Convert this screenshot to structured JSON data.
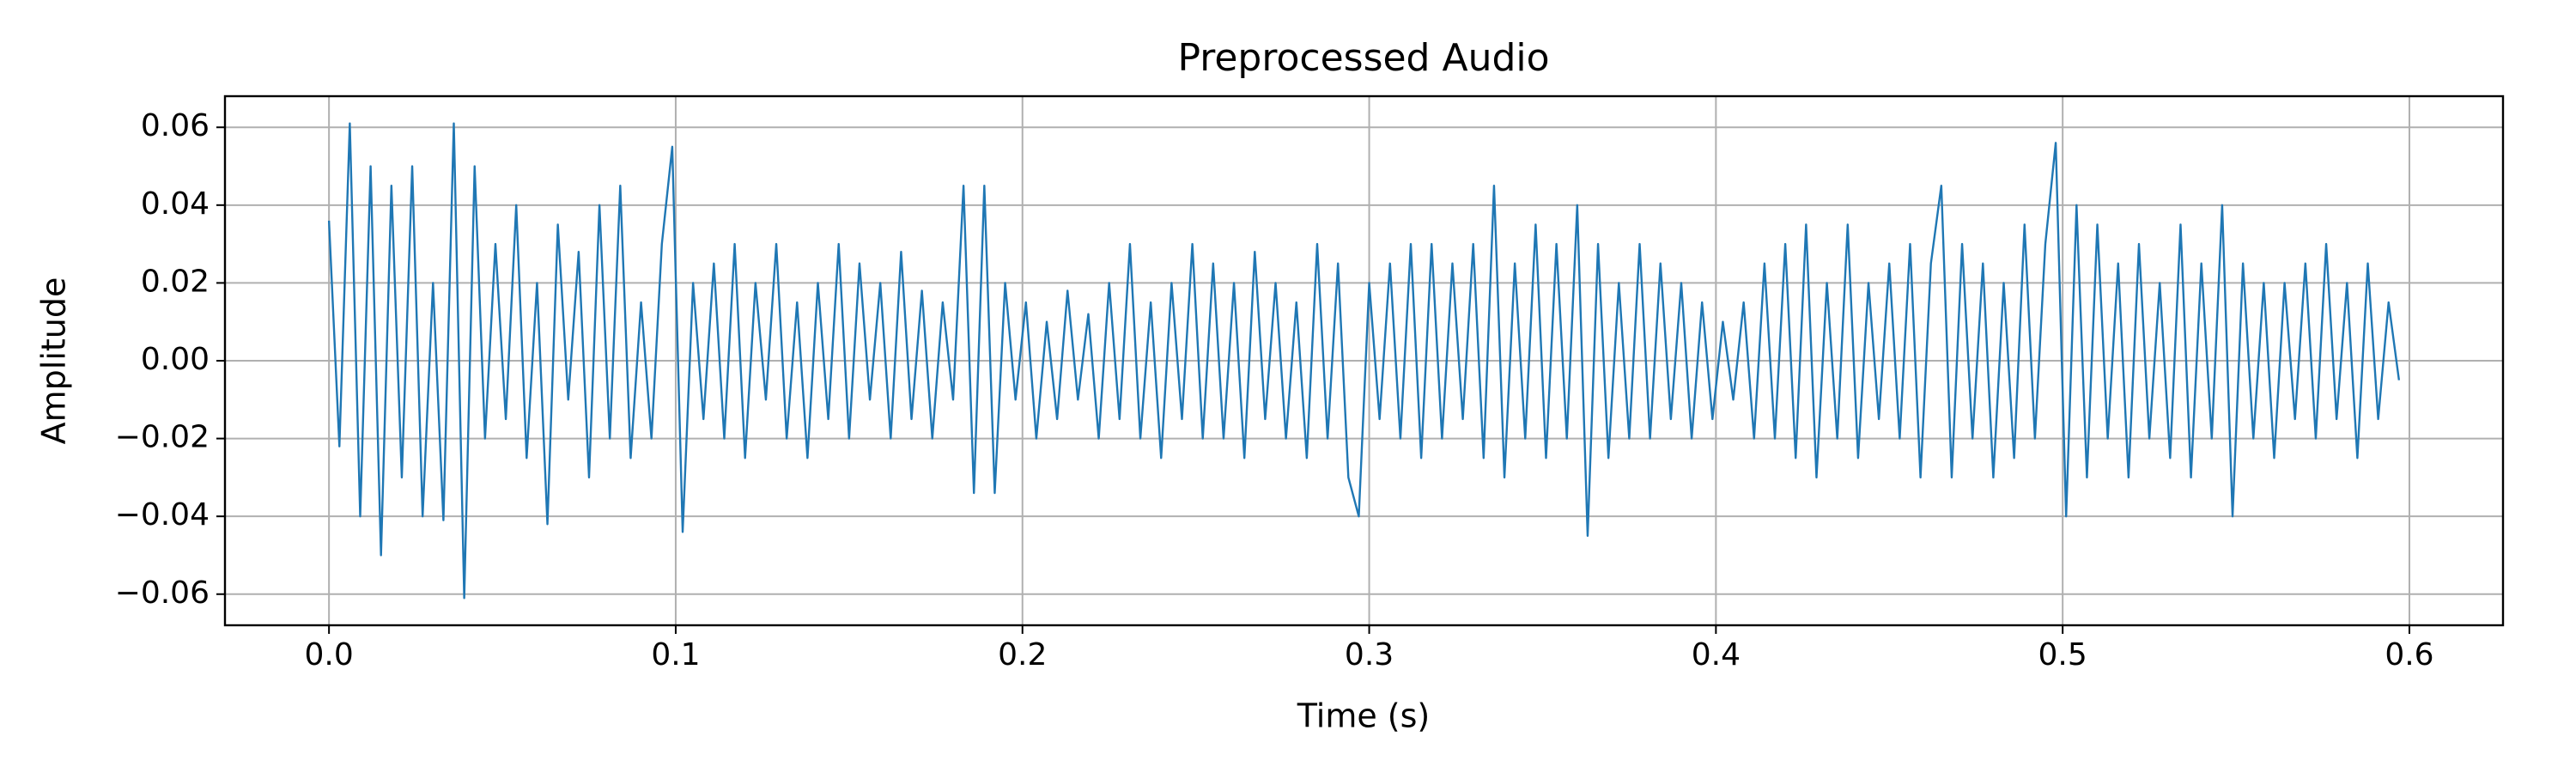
{
  "chart_data": {
    "type": "line",
    "title": "Preprocessed Audio",
    "xlabel": "Time (s)",
    "ylabel": "Amplitude",
    "color": "#1f77b4",
    "grid": true,
    "xlim": [
      -0.03,
      0.627
    ],
    "ylim": [
      -0.068,
      0.068
    ],
    "xticks": [
      {
        "value": 0,
        "label": "0.0"
      },
      0.1,
      0.2,
      0.3,
      0.4,
      0.5,
      0.6
    ],
    "yticks": [
      {
        "value": -0.06,
        "label": "−0.06"
      },
      {
        "value": -0.04,
        "label": "−0.04"
      },
      {
        "value": -0.02,
        "label": "−0.02"
      },
      {
        "value": 0,
        "label": "0.00"
      },
      {
        "value": 0.02,
        "label": "0.02"
      },
      {
        "value": 0.04,
        "label": "0.04"
      },
      {
        "value": 0.06,
        "label": "0.06"
      }
    ],
    "x": [
      0,
      0.003,
      0.006,
      0.009,
      0.012,
      0.015,
      0.018,
      0.021,
      0.024,
      0.027,
      0.03,
      0.033,
      0.036,
      0.039,
      0.042,
      0.045,
      0.048,
      0.051,
      0.054,
      0.057,
      0.06,
      0.063,
      0.066,
      0.069,
      0.072,
      0.075,
      0.078,
      0.081,
      0.084,
      0.087,
      0.09,
      0.093,
      0.096,
      0.099,
      0.102,
      0.105,
      0.108,
      0.111,
      0.114,
      0.117,
      0.12,
      0.123,
      0.126,
      0.129,
      0.132,
      0.135,
      0.138,
      0.141,
      0.144,
      0.147,
      0.15,
      0.153,
      0.156,
      0.159,
      0.162,
      0.165,
      0.168,
      0.171,
      0.174,
      0.177,
      0.18,
      0.183,
      0.186,
      0.189,
      0.192,
      0.195,
      0.198,
      0.201,
      0.204,
      0.207,
      0.21,
      0.213,
      0.216,
      0.219,
      0.222,
      0.225,
      0.228,
      0.231,
      0.234,
      0.237,
      0.24,
      0.243,
      0.246,
      0.249,
      0.252,
      0.255,
      0.258,
      0.261,
      0.264,
      0.267,
      0.27,
      0.273,
      0.276,
      0.279,
      0.282,
      0.285,
      0.288,
      0.291,
      0.294,
      0.297,
      0.3,
      0.303,
      0.306,
      0.309,
      0.312,
      0.315,
      0.318,
      0.321,
      0.324,
      0.327,
      0.33,
      0.333,
      0.336,
      0.339,
      0.342,
      0.345,
      0.348,
      0.351,
      0.354,
      0.357,
      0.36,
      0.363,
      0.366,
      0.369,
      0.372,
      0.375,
      0.378,
      0.381,
      0.384,
      0.387,
      0.39,
      0.393,
      0.396,
      0.399,
      0.402,
      0.405,
      0.408,
      0.411,
      0.414,
      0.417,
      0.42,
      0.423,
      0.426,
      0.429,
      0.432,
      0.435,
      0.438,
      0.441,
      0.444,
      0.447,
      0.45,
      0.453,
      0.456,
      0.459,
      0.462,
      0.465,
      0.468,
      0.471,
      0.474,
      0.477,
      0.48,
      0.483,
      0.486,
      0.489,
      0.492,
      0.495,
      0.498,
      0.501,
      0.504,
      0.507,
      0.51,
      0.513,
      0.516,
      0.519,
      0.522,
      0.525,
      0.528,
      0.531,
      0.534,
      0.537,
      0.54,
      0.543,
      0.546,
      0.549,
      0.552,
      0.555,
      0.558,
      0.561,
      0.564,
      0.567,
      0.57,
      0.573,
      0.576,
      0.579,
      0.582,
      0.585,
      0.588,
      0.591,
      0.594,
      0.597
    ],
    "values": [
      0.036,
      -0.022,
      0.061,
      -0.04,
      0.05,
      -0.05,
      0.045,
      -0.03,
      0.05,
      -0.04,
      0.02,
      -0.041,
      0.061,
      -0.061,
      0.05,
      -0.02,
      0.03,
      -0.015,
      0.04,
      -0.025,
      0.02,
      -0.042,
      0.035,
      -0.01,
      0.028,
      -0.03,
      0.04,
      -0.02,
      0.045,
      -0.025,
      0.015,
      -0.02,
      0.03,
      0.055,
      -0.044,
      0.02,
      -0.015,
      0.025,
      -0.02,
      0.03,
      -0.025,
      0.02,
      -0.01,
      0.03,
      -0.02,
      0.015,
      -0.025,
      0.02,
      -0.015,
      0.03,
      -0.02,
      0.025,
      -0.01,
      0.02,
      -0.02,
      0.028,
      -0.015,
      0.018,
      -0.02,
      0.015,
      -0.01,
      0.045,
      -0.034,
      0.045,
      -0.034,
      0.02,
      -0.01,
      0.015,
      -0.02,
      0.01,
      -0.015,
      0.018,
      -0.01,
      0.012,
      -0.02,
      0.02,
      -0.015,
      0.03,
      -0.02,
      0.015,
      -0.025,
      0.02,
      -0.015,
      0.03,
      -0.02,
      0.025,
      -0.02,
      0.02,
      -0.025,
      0.028,
      -0.015,
      0.02,
      -0.02,
      0.015,
      -0.025,
      0.03,
      -0.02,
      0.025,
      -0.03,
      -0.04,
      0.02,
      -0.015,
      0.025,
      -0.02,
      0.03,
      -0.025,
      0.03,
      -0.02,
      0.025,
      -0.015,
      0.03,
      -0.025,
      0.045,
      -0.03,
      0.025,
      -0.02,
      0.035,
      -0.025,
      0.03,
      -0.02,
      0.04,
      -0.045,
      0.03,
      -0.025,
      0.02,
      -0.02,
      0.03,
      -0.02,
      0.025,
      -0.015,
      0.02,
      -0.02,
      0.015,
      -0.015,
      0.01,
      -0.01,
      0.015,
      -0.02,
      0.025,
      -0.02,
      0.03,
      -0.025,
      0.035,
      -0.03,
      0.02,
      -0.02,
      0.035,
      -0.025,
      0.02,
      -0.015,
      0.025,
      -0.02,
      0.03,
      -0.03,
      0.025,
      0.045,
      -0.03,
      0.03,
      -0.02,
      0.025,
      -0.03,
      0.02,
      -0.025,
      0.035,
      -0.02,
      0.03,
      0.056,
      -0.04,
      0.04,
      -0.03,
      0.035,
      -0.02,
      0.025,
      -0.03,
      0.03,
      -0.02,
      0.02,
      -0.025,
      0.035,
      -0.03,
      0.025,
      -0.02,
      0.04,
      -0.04,
      0.025,
      -0.02,
      0.02,
      -0.025,
      0.02,
      -0.015,
      0.025,
      -0.02,
      0.03,
      -0.015,
      0.02,
      -0.025,
      0.025,
      -0.015,
      0.015,
      -0.005
    ]
  }
}
